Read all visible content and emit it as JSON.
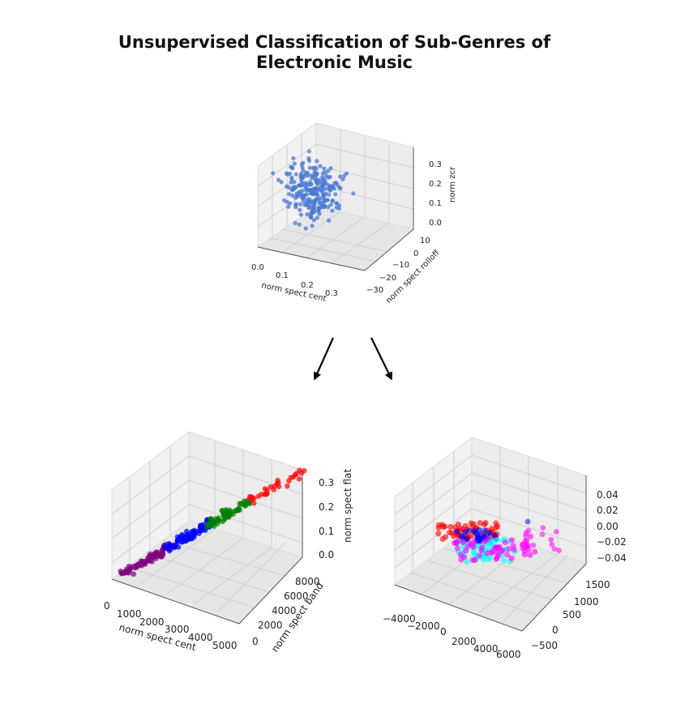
{
  "title_line1": "Unsupervised Classification of Sub-Genres of",
  "title_line2": "Electronic Music",
  "colors": {
    "raw_points": "#4a78d2",
    "cluster_purple": "#800080",
    "cluster_blue": "#0000ff",
    "cluster_green": "#008000",
    "cluster_red": "#ff0000",
    "cluster_cyan": "#00ffff",
    "cluster_magenta": "#ff00ff"
  },
  "plot_top": {
    "x_label": "norm spect cent",
    "y_label": "norm spect rolloff",
    "z_label": "norm zcr",
    "x_ticks": [
      "0.0",
      "0.1",
      "0.2",
      "0.3"
    ],
    "y_ticks": [
      "10",
      "0",
      "−10",
      "−20",
      "−30"
    ],
    "z_ticks": [
      "0.3",
      "0.2",
      "0.1",
      "0.0"
    ]
  },
  "plot_left": {
    "x_label": "norm spect cent",
    "y_label": "norm spect band",
    "z_label": "norm spect flat",
    "x_ticks": [
      "0",
      "1000",
      "2000",
      "3000",
      "4000",
      "5000"
    ],
    "y_ticks": [
      "8000",
      "6000",
      "4000",
      "2000",
      "0"
    ],
    "z_ticks": [
      "0.3",
      "0.2",
      "0.1",
      "0.0"
    ]
  },
  "plot_right": {
    "x_ticks": [
      "−4000",
      "−2000",
      "0",
      "2000",
      "4000",
      "6000"
    ],
    "y_ticks": [
      "1500",
      "1000",
      "500",
      "0",
      "−500"
    ],
    "z_ticks": [
      "0.04",
      "0.02",
      "0.00",
      "−0.02",
      "−0.04"
    ]
  }
}
